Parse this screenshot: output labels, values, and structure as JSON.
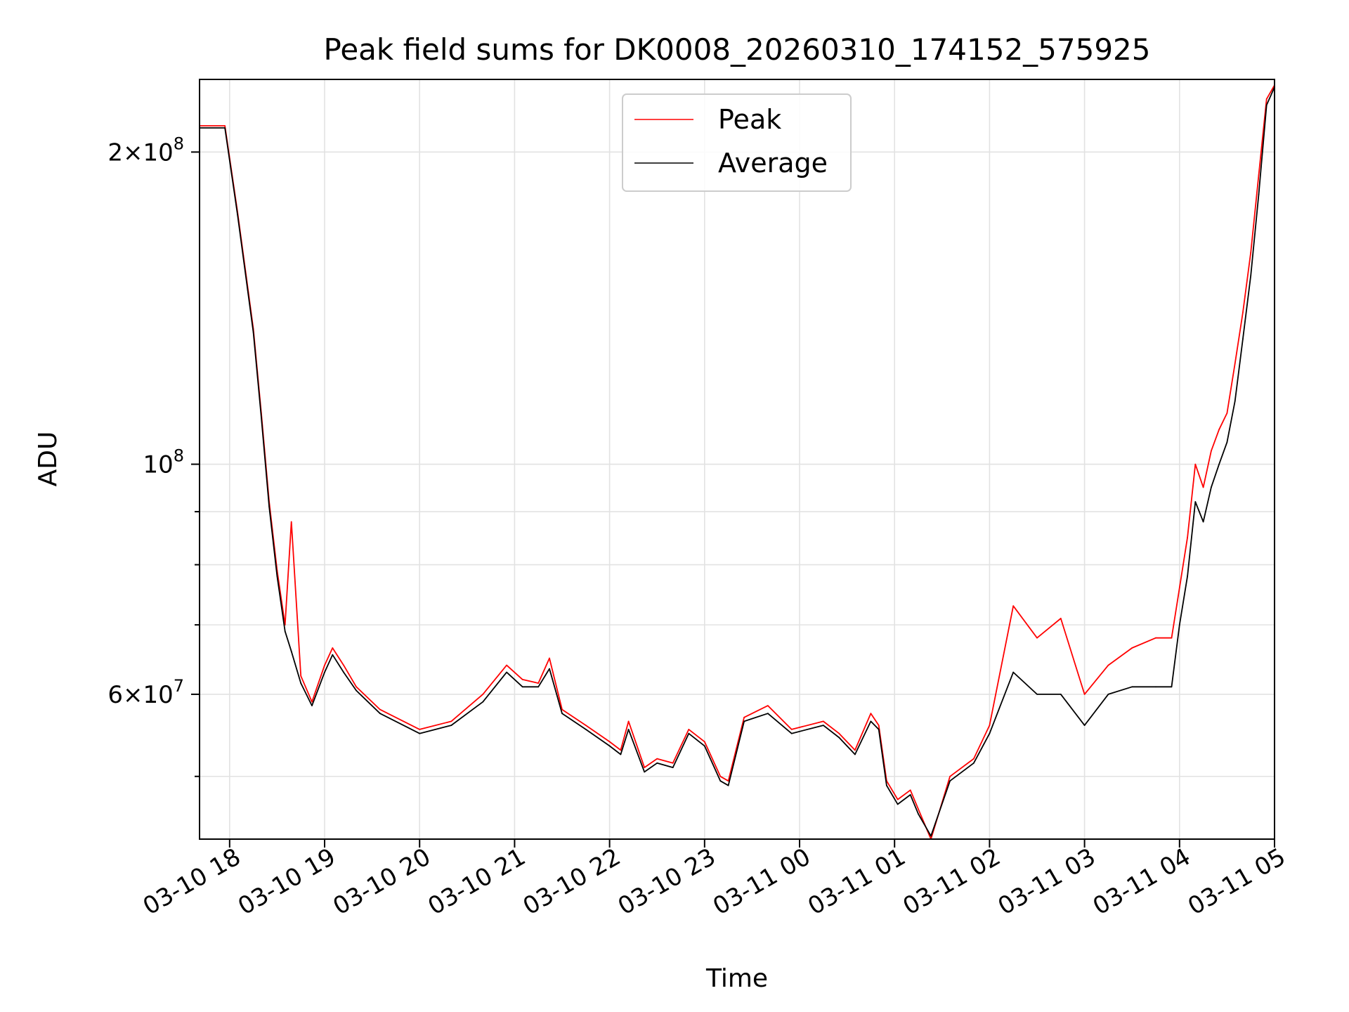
{
  "chart_data": {
    "type": "line",
    "title": "Peak field sums for DK0008_20260310_174152_575925",
    "xlabel": "Time",
    "ylabel": "ADU",
    "yscale": "log",
    "grid": true,
    "legend_position": "top-center",
    "xlim": [
      "2026-03-10 17:41",
      "2026-03-11 05:00"
    ],
    "ylim": [
      43500000,
      235000000
    ],
    "x_ticks": [
      "03-10 18",
      "03-10 19",
      "03-10 20",
      "03-10 21",
      "03-10 22",
      "03-10 23",
      "03-11 00",
      "03-11 01",
      "03-11 02",
      "03-11 03",
      "03-11 04",
      "03-11 05"
    ],
    "y_ticks": [
      {
        "value": 200000000,
        "mantissa": "2",
        "exponent": "8"
      },
      {
        "value": 100000000,
        "mantissa": "",
        "exponent": "8"
      },
      {
        "value": 60000000,
        "mantissa": "6",
        "exponent": "7"
      }
    ],
    "y_ticks_minor": [
      50000000,
      70000000,
      80000000,
      90000000
    ],
    "series": [
      {
        "name": "Peak",
        "color": "#ff0000",
        "x": [
          "2026-03-10 17:41",
          "2026-03-10 17:57",
          "2026-03-10 18:05",
          "2026-03-10 18:15",
          "2026-03-10 18:20",
          "2026-03-10 18:25",
          "2026-03-10 18:30",
          "2026-03-10 18:35",
          "2026-03-10 18:39",
          "2026-03-10 18:45",
          "2026-03-10 18:52",
          "2026-03-10 19:00",
          "2026-03-10 19:05",
          "2026-03-10 19:12",
          "2026-03-10 19:20",
          "2026-03-10 19:35",
          "2026-03-10 20:00",
          "2026-03-10 20:20",
          "2026-03-10 20:40",
          "2026-03-10 20:55",
          "2026-03-10 21:05",
          "2026-03-10 21:15",
          "2026-03-10 21:22",
          "2026-03-10 21:30",
          "2026-03-10 21:45",
          "2026-03-10 22:00",
          "2026-03-10 22:07",
          "2026-03-10 22:12",
          "2026-03-10 22:22",
          "2026-03-10 22:30",
          "2026-03-10 22:40",
          "2026-03-10 22:50",
          "2026-03-10 23:00",
          "2026-03-10 23:10",
          "2026-03-10 23:15",
          "2026-03-10 23:25",
          "2026-03-10 23:40",
          "2026-03-10 23:55",
          "2026-03-11 00:15",
          "2026-03-11 00:25",
          "2026-03-11 00:35",
          "2026-03-11 00:45",
          "2026-03-11 00:50",
          "2026-03-11 00:55",
          "2026-03-11 01:02",
          "2026-03-11 01:10",
          "2026-03-11 01:15",
          "2026-03-11 01:23",
          "2026-03-11 01:35",
          "2026-03-11 01:50",
          "2026-03-11 02:00",
          "2026-03-11 02:15",
          "2026-03-11 02:30",
          "2026-03-11 02:45",
          "2026-03-11 03:00",
          "2026-03-11 03:15",
          "2026-03-11 03:30",
          "2026-03-11 03:45",
          "2026-03-11 03:55",
          "2026-03-11 04:00",
          "2026-03-11 04:05",
          "2026-03-11 04:10",
          "2026-03-11 04:15",
          "2026-03-11 04:20",
          "2026-03-11 04:25",
          "2026-03-11 04:30",
          "2026-03-11 04:35",
          "2026-03-11 04:40",
          "2026-03-11 04:45",
          "2026-03-11 04:50",
          "2026-03-11 04:55",
          "2026-03-11 05:00"
        ],
        "y": [
          212000000,
          212000000,
          175000000,
          135000000,
          112000000,
          92000000,
          79000000,
          70000000,
          88000000,
          62500000,
          59000000,
          64000000,
          66500000,
          64000000,
          61000000,
          58000000,
          55500000,
          56500000,
          60000000,
          64000000,
          62000000,
          61500000,
          65000000,
          58000000,
          56000000,
          54000000,
          53000000,
          56500000,
          51000000,
          52000000,
          51500000,
          55500000,
          54000000,
          50000000,
          49500000,
          57000000,
          58500000,
          55500000,
          56500000,
          55000000,
          53000000,
          57500000,
          56000000,
          49500000,
          47500000,
          48500000,
          46500000,
          43500000,
          50000000,
          52000000,
          56000000,
          73000000,
          68000000,
          71000000,
          60000000,
          64000000,
          66500000,
          68000000,
          68000000,
          76000000,
          85000000,
          100000000,
          95000000,
          103000000,
          108000000,
          112000000,
          125000000,
          140000000,
          160000000,
          190000000,
          225000000,
          232000000
        ]
      },
      {
        "name": "Average",
        "color": "#000000",
        "x": [
          "2026-03-10 17:41",
          "2026-03-10 17:57",
          "2026-03-10 18:05",
          "2026-03-10 18:15",
          "2026-03-10 18:20",
          "2026-03-10 18:25",
          "2026-03-10 18:30",
          "2026-03-10 18:35",
          "2026-03-10 18:39",
          "2026-03-10 18:45",
          "2026-03-10 18:52",
          "2026-03-10 19:00",
          "2026-03-10 19:05",
          "2026-03-10 19:12",
          "2026-03-10 19:20",
          "2026-03-10 19:35",
          "2026-03-10 20:00",
          "2026-03-10 20:20",
          "2026-03-10 20:40",
          "2026-03-10 20:55",
          "2026-03-10 21:05",
          "2026-03-10 21:15",
          "2026-03-10 21:22",
          "2026-03-10 21:30",
          "2026-03-10 21:45",
          "2026-03-10 22:00",
          "2026-03-10 22:07",
          "2026-03-10 22:12",
          "2026-03-10 22:22",
          "2026-03-10 22:30",
          "2026-03-10 22:40",
          "2026-03-10 22:50",
          "2026-03-10 23:00",
          "2026-03-10 23:10",
          "2026-03-10 23:15",
          "2026-03-10 23:25",
          "2026-03-10 23:40",
          "2026-03-10 23:55",
          "2026-03-11 00:15",
          "2026-03-11 00:25",
          "2026-03-11 00:35",
          "2026-03-11 00:45",
          "2026-03-11 00:50",
          "2026-03-11 00:55",
          "2026-03-11 01:02",
          "2026-03-11 01:10",
          "2026-03-11 01:15",
          "2026-03-11 01:23",
          "2026-03-11 01:35",
          "2026-03-11 01:50",
          "2026-03-11 02:00",
          "2026-03-11 02:15",
          "2026-03-11 02:30",
          "2026-03-11 02:45",
          "2026-03-11 03:00",
          "2026-03-11 03:15",
          "2026-03-11 03:30",
          "2026-03-11 03:45",
          "2026-03-11 03:55",
          "2026-03-11 04:00",
          "2026-03-11 04:05",
          "2026-03-11 04:10",
          "2026-03-11 04:15",
          "2026-03-11 04:20",
          "2026-03-11 04:25",
          "2026-03-11 04:30",
          "2026-03-11 04:35",
          "2026-03-11 04:40",
          "2026-03-11 04:45",
          "2026-03-11 04:50",
          "2026-03-11 04:55",
          "2026-03-11 05:00"
        ],
        "y": [
          211000000,
          211000000,
          174000000,
          134000000,
          111000000,
          91000000,
          78000000,
          69000000,
          66000000,
          61500000,
          58500000,
          63000000,
          65500000,
          63000000,
          60500000,
          57500000,
          55000000,
          56000000,
          59000000,
          63000000,
          61000000,
          61000000,
          63500000,
          57500000,
          55500000,
          53500000,
          52500000,
          55500000,
          50500000,
          51500000,
          51000000,
          55000000,
          53500000,
          49500000,
          49000000,
          56500000,
          57500000,
          55000000,
          56000000,
          54500000,
          52500000,
          56500000,
          55500000,
          49000000,
          47000000,
          48000000,
          46000000,
          43800000,
          49500000,
          51500000,
          55000000,
          63000000,
          60000000,
          60000000,
          56000000,
          60000000,
          61000000,
          61000000,
          61000000,
          70000000,
          78000000,
          92000000,
          88000000,
          95000000,
          100000000,
          105000000,
          115000000,
          132000000,
          152000000,
          182000000,
          222000000,
          231000000
        ]
      }
    ]
  }
}
